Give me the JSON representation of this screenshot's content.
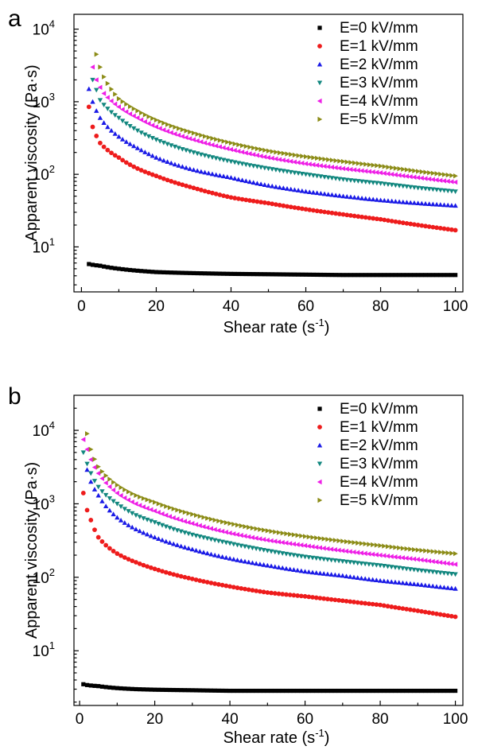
{
  "colors": {
    "E0": "#000000",
    "E1": "#ee1c1c",
    "E2": "#1a1ae6",
    "E3": "#12877f",
    "E4": "#ee1ee6",
    "E5": "#8c8c17"
  },
  "chart_data": [
    {
      "panel_label": "a",
      "type": "scatter",
      "xlabel": "Shear rate (s",
      "xlabel_sup": "-1",
      "xlabel_end": ")",
      "ylabel": "Apparent viscosity (Pa·s)",
      "xlim": [
        -2,
        102
      ],
      "ylim": [
        2.4,
        16000
      ],
      "yscale": "log",
      "xticks": [
        0,
        20,
        40,
        60,
        80,
        100
      ],
      "xtick_labels": [
        "0",
        "20",
        "40",
        "60",
        "80",
        "100"
      ],
      "yticks": [
        10,
        100,
        1000,
        10000
      ],
      "ytick_labels": [
        {
          "base": "10",
          "exp": "1"
        },
        {
          "base": "10",
          "exp": "2"
        },
        {
          "base": "10",
          "exp": "3"
        },
        {
          "base": "10",
          "exp": "4"
        }
      ],
      "legend_position": "top-right",
      "x_start": 2,
      "x_end": 100,
      "x_step": 1,
      "series": [
        {
          "name": "E=0 kV/mm",
          "marker": "square",
          "color_key": "E0",
          "x": [
            2,
            5,
            10,
            15,
            20,
            30,
            40,
            50,
            60,
            70,
            80,
            90,
            100
          ],
          "y": [
            5.8,
            5.5,
            5.0,
            4.7,
            4.5,
            4.35,
            4.25,
            4.2,
            4.15,
            4.1,
            4.1,
            4.1,
            4.1
          ]
        },
        {
          "name": "E=1 kV/mm",
          "marker": "circle",
          "color_key": "E1",
          "x": [
            2,
            3,
            5,
            10,
            15,
            20,
            30,
            40,
            50,
            60,
            70,
            80,
            90,
            100
          ],
          "y": [
            850,
            450,
            270,
            170,
            120,
            95,
            65,
            48,
            40,
            33,
            28,
            24,
            20,
            17
          ]
        },
        {
          "name": "E=2 kV/mm",
          "marker": "triangle-up",
          "color_key": "E2",
          "x": [
            2,
            3,
            5,
            10,
            15,
            20,
            30,
            40,
            50,
            60,
            70,
            80,
            90,
            100
          ],
          "y": [
            1500,
            1000,
            600,
            330,
            230,
            170,
            115,
            90,
            70,
            58,
            50,
            44,
            40,
            37
          ]
        },
        {
          "name": "E=3 kV/mm",
          "marker": "triangle-down",
          "color_key": "E3",
          "x": [
            3,
            4,
            5,
            10,
            15,
            20,
            30,
            40,
            50,
            60,
            70,
            80,
            90,
            100
          ],
          "y": [
            2000,
            1450,
            1050,
            600,
            400,
            300,
            200,
            150,
            120,
            100,
            85,
            75,
            65,
            58
          ]
        },
        {
          "name": "E=4 kV/mm",
          "marker": "triangle-left",
          "color_key": "E4",
          "x": [
            3,
            4,
            6,
            10,
            15,
            20,
            30,
            40,
            50,
            60,
            70,
            80,
            90,
            100
          ],
          "y": [
            3000,
            2000,
            1300,
            850,
            600,
            450,
            300,
            220,
            170,
            140,
            120,
            105,
            90,
            78
          ]
        },
        {
          "name": "E=5 kV/mm",
          "marker": "triangle-right",
          "color_key": "E5",
          "x": [
            4,
            5,
            6,
            10,
            15,
            20,
            30,
            40,
            50,
            60,
            70,
            80,
            90,
            100
          ],
          "y": [
            4500,
            3000,
            2200,
            1100,
            750,
            560,
            370,
            270,
            210,
            175,
            150,
            130,
            110,
            95
          ]
        }
      ]
    },
    {
      "panel_label": "b",
      "type": "scatter",
      "xlabel": "Shear rate (s",
      "xlabel_sup": "-1",
      "xlabel_end": ")",
      "ylabel": "Apparent viscosity (Pa·s)",
      "xlim": [
        -1.5,
        102
      ],
      "ylim": [
        1.8,
        30000
      ],
      "yscale": "log",
      "xticks": [
        0,
        20,
        40,
        60,
        80,
        100
      ],
      "xtick_labels": [
        "0",
        "20",
        "40",
        "60",
        "80",
        "100"
      ],
      "yticks": [
        10,
        100,
        1000,
        10000
      ],
      "ytick_labels": [
        {
          "base": "10",
          "exp": "1"
        },
        {
          "base": "10",
          "exp": "2"
        },
        {
          "base": "10",
          "exp": "3"
        },
        {
          "base": "10",
          "exp": "4"
        }
      ],
      "legend_position": "top-right",
      "x_start": 1,
      "x_end": 100,
      "x_step": 1,
      "series": [
        {
          "name": "E=0 kV/mm",
          "marker": "square",
          "color_key": "E0",
          "x": [
            1,
            5,
            10,
            15,
            20,
            30,
            40,
            50,
            60,
            70,
            80,
            90,
            100
          ],
          "y": [
            3.5,
            3.3,
            3.1,
            3.0,
            2.95,
            2.9,
            2.85,
            2.85,
            2.85,
            2.85,
            2.85,
            2.85,
            2.85
          ]
        },
        {
          "name": "E=1 kV/mm",
          "marker": "circle",
          "color_key": "E1",
          "x": [
            1,
            3,
            5,
            10,
            15,
            20,
            30,
            40,
            50,
            60,
            70,
            80,
            90,
            100
          ],
          "y": [
            1400,
            600,
            350,
            210,
            160,
            130,
            95,
            75,
            62,
            55,
            48,
            42,
            35,
            29
          ]
        },
        {
          "name": "E=2 kV/mm",
          "marker": "triangle-up",
          "color_key": "E2",
          "x": [
            2,
            3,
            5,
            10,
            15,
            20,
            30,
            40,
            50,
            60,
            70,
            80,
            90,
            100
          ],
          "y": [
            2900,
            2000,
            1300,
            650,
            450,
            350,
            240,
            180,
            145,
            120,
            105,
            90,
            80,
            70
          ]
        },
        {
          "name": "E=3 kV/mm",
          "marker": "triangle-down",
          "color_key": "E3",
          "x": [
            1,
            2,
            3,
            5,
            10,
            15,
            20,
            30,
            40,
            50,
            60,
            70,
            80,
            90,
            100
          ],
          "y": [
            5000,
            3500,
            2600,
            1700,
            1000,
            700,
            560,
            380,
            290,
            230,
            190,
            165,
            145,
            125,
            110
          ]
        },
        {
          "name": "E=4 kV/mm",
          "marker": "triangle-left",
          "color_key": "E4",
          "x": [
            1,
            2,
            3,
            5,
            10,
            15,
            20,
            30,
            40,
            50,
            60,
            70,
            80,
            90,
            100
          ],
          "y": [
            7500,
            5500,
            4000,
            2600,
            1400,
            1000,
            800,
            540,
            400,
            320,
            270,
            230,
            200,
            175,
            150
          ]
        },
        {
          "name": "E=5 kV/mm",
          "marker": "triangle-right",
          "color_key": "E5",
          "x": [
            2,
            3,
            5,
            10,
            15,
            20,
            30,
            40,
            50,
            60,
            70,
            80,
            90,
            100
          ],
          "y": [
            9000,
            5500,
            3200,
            1800,
            1300,
            1050,
            720,
            540,
            430,
            360,
            310,
            270,
            235,
            210
          ]
        }
      ]
    }
  ]
}
